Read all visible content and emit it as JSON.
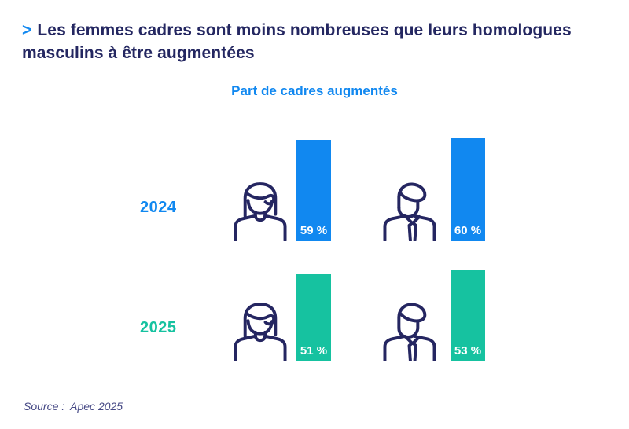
{
  "header": {
    "bullet": ">",
    "title_line1": "Les femmes cadres sont moins nombreuses que leurs homologues",
    "title_line2": "masculins à être augmentées"
  },
  "chart": {
    "subtitle": "Part de cadres augmentés",
    "rows": [
      {
        "year": "2024",
        "color": "#1188F0",
        "bars": [
          {
            "group": "femmes",
            "icon": "woman-icon",
            "value": 59,
            "label": "59 %"
          },
          {
            "group": "hommes",
            "icon": "man-icon",
            "value": 60,
            "label": "60 %"
          }
        ]
      },
      {
        "year": "2025",
        "color": "#16C2A0",
        "bars": [
          {
            "group": "femmes",
            "icon": "woman-icon",
            "value": 51,
            "label": "51 %"
          },
          {
            "group": "hommes",
            "icon": "man-icon",
            "value": 53,
            "label": "53 %"
          }
        ]
      }
    ]
  },
  "chart_data": {
    "type": "bar",
    "title": "Part de cadres augmentés",
    "categories": [
      "Femmes",
      "Hommes"
    ],
    "category_icons": [
      "woman-icon",
      "man-icon"
    ],
    "series": [
      {
        "name": "2024",
        "values": [
          59,
          60
        ],
        "color": "#1188F0"
      },
      {
        "name": "2025",
        "values": [
          51,
          53
        ],
        "color": "#16C2A0"
      }
    ],
    "unit": "%",
    "value_labels": [
      [
        "59 %",
        "60 %"
      ],
      [
        "51 %",
        "53 %"
      ]
    ],
    "ylim": [
      0,
      100
    ],
    "grid": false,
    "orientation": "vertical",
    "legend_position": "row-labels-left",
    "source": "Source : Apec 2025"
  },
  "source": {
    "label": "Source :",
    "value": "Apec 2025"
  },
  "colors": {
    "navy": "#242761",
    "icon_stroke": "#252661",
    "blue": "#1188F0",
    "teal": "#16C2A0",
    "value_text": "#ffffff",
    "source_text": "#474a86",
    "background": "#ffffff"
  }
}
